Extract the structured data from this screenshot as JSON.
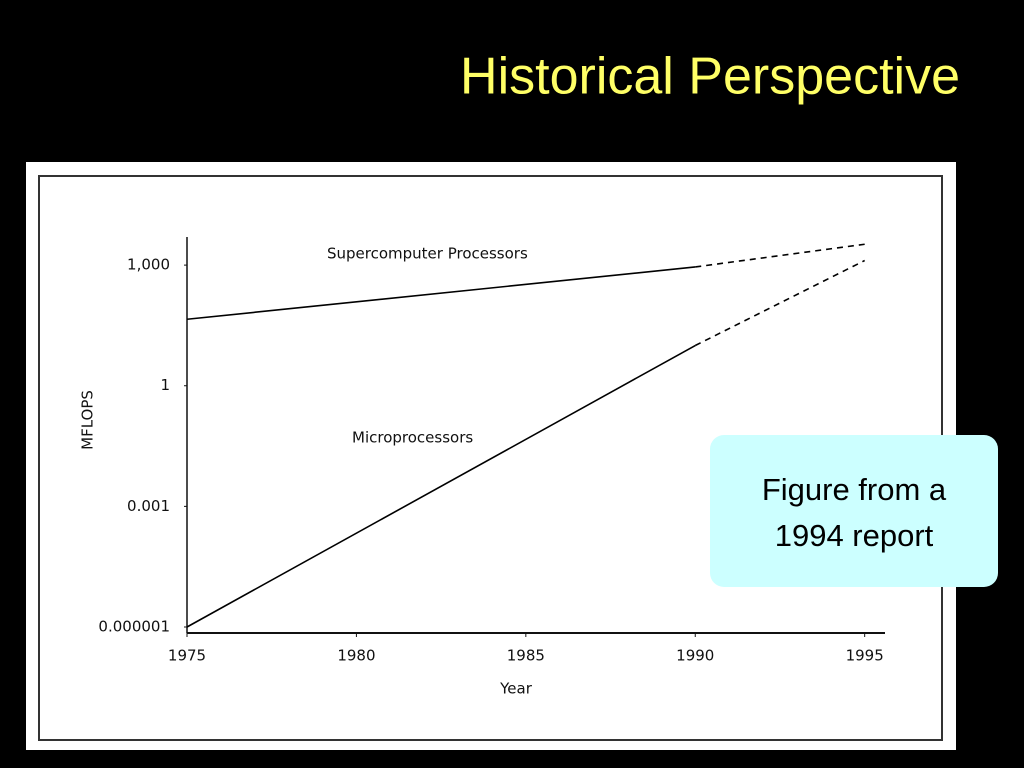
{
  "slide": {
    "title": "Historical Perspective",
    "callout": [
      "Figure from a",
      "1994 report"
    ]
  },
  "chart_data": {
    "type": "line",
    "log_y": true,
    "x_label": "Year",
    "y_label": "MFLOPS",
    "xlim": [
      1975,
      1995.6
    ],
    "xticks": [
      1975,
      1980,
      1985,
      1990,
      1995
    ],
    "ylim": [
      1e-06,
      5000
    ],
    "yticks": [
      {
        "value": 1e-06,
        "label": "0.000001"
      },
      {
        "value": 0.001,
        "label": "0.001"
      },
      1,
      {
        "value": 1000,
        "label": "1,000"
      }
    ],
    "series": [
      {
        "name": "Supercomputer Processors",
        "color": "#000000",
        "x": [
          1975,
          1990,
          1995
        ],
        "values": [
          45,
          900,
          3300
        ],
        "dashed_from": 1990
      },
      {
        "name": "Microprocessors",
        "color": "#000000",
        "x": [
          1975,
          1990,
          1995
        ],
        "values": [
          1e-06,
          10,
          1300
        ],
        "dashed_from": 1990
      }
    ]
  }
}
